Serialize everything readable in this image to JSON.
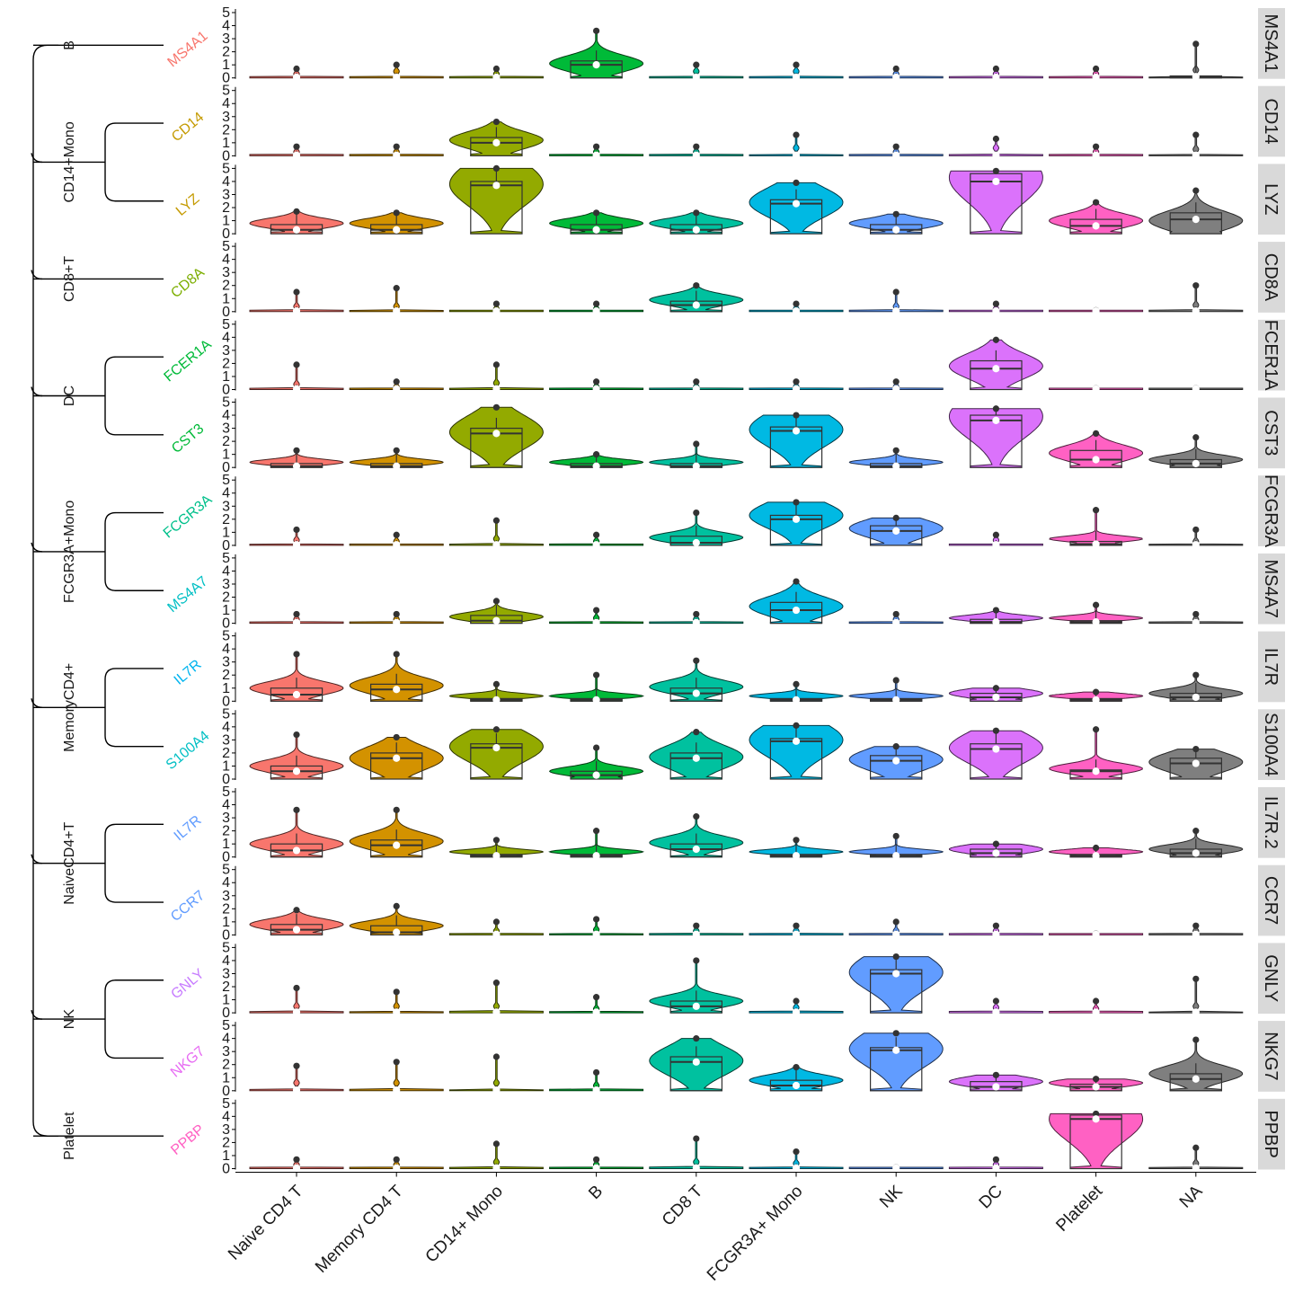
{
  "chart_data": {
    "type": "stacked-violin",
    "ytick_labels": [
      "0",
      "1",
      "2",
      "3",
      "4",
      "5"
    ],
    "ylim": [
      0,
      5
    ],
    "categories": [
      "Naive CD4 T",
      "Memory CD4 T",
      "CD14+ Mono",
      "B",
      "CD8 T",
      "FCGR3A+ Mono",
      "NK",
      "DC",
      "Platelet",
      "NA"
    ],
    "category_colors": [
      "#F8766D",
      "#D39200",
      "#93AA00",
      "#00BA38",
      "#00C19F",
      "#00B9E3",
      "#619CFF",
      "#DB72FB",
      "#FF61C3",
      "#7F7F7F"
    ],
    "genes": [
      {
        "name": "MS4A1",
        "label_color": "#F8766D",
        "medians": [
          0.05,
          0.05,
          0.05,
          1.0,
          0.05,
          0.05,
          0.05,
          0.05,
          0.05,
          0.1
        ],
        "q3": [
          0.05,
          0.05,
          0.05,
          1.3,
          0.05,
          0.05,
          0.05,
          0.05,
          0.05,
          0.15
        ],
        "peaks": [
          0.3,
          0.5,
          0.3,
          1.1,
          0.5,
          0.5,
          0.3,
          0.3,
          0.3,
          0.6
        ],
        "max": [
          0.7,
          1.0,
          0.7,
          3.6,
          1.0,
          1.0,
          0.7,
          0.7,
          0.7,
          2.6
        ]
      },
      {
        "name": "CD14",
        "label_color": "#C49A00",
        "medians": [
          0.05,
          0.05,
          1.0,
          0.05,
          0.05,
          0.05,
          0.05,
          0.05,
          0.05,
          0.05
        ],
        "q3": [
          0.05,
          0.05,
          1.4,
          0.05,
          0.05,
          0.05,
          0.05,
          0.05,
          0.05,
          0.05
        ],
        "peaks": [
          0.3,
          0.3,
          1.2,
          0.3,
          0.3,
          0.6,
          0.3,
          0.6,
          0.3,
          0.5
        ],
        "max": [
          0.7,
          0.7,
          2.6,
          0.7,
          0.7,
          1.6,
          0.7,
          1.3,
          0.7,
          1.6
        ]
      },
      {
        "name": "LYZ",
        "label_color": "#C49A00",
        "medians": [
          0.3,
          0.3,
          3.7,
          0.3,
          0.3,
          2.3,
          0.3,
          4.0,
          0.6,
          1.1
        ],
        "q3": [
          0.7,
          0.7,
          4.0,
          0.7,
          0.7,
          2.6,
          0.7,
          4.6,
          1.1,
          1.6
        ],
        "peaks": [
          0.8,
          0.8,
          3.8,
          0.8,
          0.8,
          2.4,
          0.8,
          4.3,
          1.0,
          1.0
        ],
        "max": [
          1.7,
          1.6,
          5.0,
          1.6,
          1.6,
          3.9,
          1.5,
          4.8,
          2.4,
          3.3
        ]
      },
      {
        "name": "CD8A",
        "label_color": "#7CAE00",
        "medians": [
          0.05,
          0.05,
          0.05,
          0.05,
          0.5,
          0.05,
          0.05,
          0.05,
          0.05,
          0.05
        ],
        "q3": [
          0.05,
          0.05,
          0.05,
          0.05,
          0.8,
          0.05,
          0.05,
          0.05,
          0.05,
          0.05
        ],
        "peaks": [
          0.4,
          0.4,
          0.2,
          0.2,
          0.9,
          0.2,
          0.4,
          0.2,
          0.1,
          0.5
        ],
        "max": [
          1.5,
          1.8,
          0.6,
          0.6,
          2.0,
          0.6,
          1.5,
          0.6,
          0.1,
          2.0
        ]
      },
      {
        "name": "FCER1A",
        "label_color": "#00BA38",
        "medians": [
          0.05,
          0.05,
          0.05,
          0.05,
          0.05,
          0.05,
          0.05,
          1.6,
          0.05,
          0.05
        ],
        "q3": [
          0.05,
          0.05,
          0.05,
          0.05,
          0.05,
          0.05,
          0.05,
          2.2,
          0.05,
          0.05
        ],
        "peaks": [
          0.4,
          0.2,
          0.5,
          0.2,
          0.2,
          0.2,
          0.2,
          1.8,
          0.1,
          0.1
        ],
        "max": [
          1.9,
          0.6,
          1.9,
          0.6,
          0.6,
          0.6,
          0.6,
          3.8,
          0.1,
          0.1
        ]
      },
      {
        "name": "CST3",
        "label_color": "#00BA38",
        "medians": [
          0.1,
          0.1,
          2.6,
          0.1,
          0.1,
          2.8,
          0.1,
          3.6,
          0.6,
          0.3
        ],
        "q3": [
          0.3,
          0.3,
          3.0,
          0.3,
          0.3,
          3.1,
          0.3,
          4.0,
          1.3,
          0.6
        ],
        "peaks": [
          0.4,
          0.4,
          2.7,
          0.4,
          0.4,
          2.9,
          0.4,
          3.9,
          1.1,
          0.6
        ],
        "max": [
          1.3,
          1.3,
          4.6,
          1.0,
          1.8,
          4.0,
          1.3,
          4.5,
          2.6,
          2.3
        ]
      },
      {
        "name": "FCGR3A",
        "label_color": "#00C08B",
        "medians": [
          0.05,
          0.05,
          0.05,
          0.05,
          0.2,
          2.0,
          1.1,
          0.05,
          0.1,
          0.05
        ],
        "q3": [
          0.05,
          0.05,
          0.05,
          0.05,
          0.7,
          2.3,
          1.5,
          0.05,
          0.3,
          0.05
        ],
        "peaks": [
          0.4,
          0.3,
          0.5,
          0.3,
          0.6,
          2.3,
          1.3,
          0.4,
          0.5,
          0.3
        ],
        "max": [
          1.2,
          0.8,
          1.9,
          0.8,
          2.5,
          3.3,
          2.1,
          0.8,
          2.7,
          1.2
        ]
      },
      {
        "name": "MS4A7",
        "label_color": "#00BFC4",
        "medians": [
          0.05,
          0.05,
          0.2,
          0.05,
          0.05,
          1.0,
          0.05,
          0.1,
          0.1,
          0.05
        ],
        "q3": [
          0.05,
          0.05,
          0.6,
          0.05,
          0.05,
          1.6,
          0.05,
          0.3,
          0.2,
          0.05
        ],
        "peaks": [
          0.3,
          0.3,
          0.5,
          0.4,
          0.3,
          1.3,
          0.3,
          0.4,
          0.4,
          0.3
        ],
        "max": [
          0.7,
          0.7,
          1.7,
          1.0,
          0.7,
          3.2,
          0.7,
          1.0,
          1.4,
          0.7
        ]
      },
      {
        "name": "IL7R",
        "label_color": "#00B4EF",
        "medians": [
          0.5,
          0.9,
          0.1,
          0.1,
          0.6,
          0.1,
          0.1,
          0.3,
          0.1,
          0.3
        ],
        "q3": [
          1.0,
          1.3,
          0.2,
          0.2,
          1.0,
          0.2,
          0.2,
          0.6,
          0.2,
          0.6
        ],
        "peaks": [
          1.0,
          1.2,
          0.4,
          0.4,
          1.1,
          0.4,
          0.4,
          0.6,
          0.4,
          0.6
        ],
        "max": [
          3.6,
          3.6,
          1.3,
          2.0,
          3.1,
          1.3,
          1.6,
          1.0,
          0.7,
          2.0
        ]
      },
      {
        "name": "S100A4",
        "label_color": "#00BFC4",
        "medians": [
          0.6,
          1.6,
          2.4,
          0.3,
          1.6,
          2.9,
          1.4,
          2.3,
          0.6,
          1.2
        ],
        "q3": [
          1.0,
          2.0,
          2.7,
          0.6,
          2.0,
          3.1,
          1.8,
          2.7,
          0.7,
          1.6
        ],
        "peaks": [
          1.0,
          1.6,
          2.5,
          0.6,
          1.7,
          3.0,
          1.5,
          2.4,
          0.8,
          1.3
        ],
        "max": [
          3.4,
          3.2,
          3.8,
          2.4,
          3.6,
          4.1,
          2.5,
          3.7,
          3.8,
          2.3
        ]
      },
      {
        "name": "IL7R.2",
        "label_color": "#619CFF",
        "medians": [
          0.5,
          0.9,
          0.1,
          0.1,
          0.6,
          0.1,
          0.1,
          0.3,
          0.1,
          0.3
        ],
        "q3": [
          1.0,
          1.3,
          0.2,
          0.2,
          1.0,
          0.2,
          0.2,
          0.6,
          0.2,
          0.6
        ],
        "peaks": [
          1.0,
          1.2,
          0.4,
          0.4,
          1.1,
          0.4,
          0.4,
          0.6,
          0.4,
          0.6
        ],
        "max": [
          3.6,
          3.6,
          1.3,
          2.0,
          3.1,
          1.3,
          1.6,
          1.0,
          0.7,
          2.0
        ]
      },
      {
        "name": "CCR7",
        "label_color": "#619CFF",
        "medians": [
          0.4,
          0.2,
          0.05,
          0.05,
          0.05,
          0.05,
          0.05,
          0.05,
          0.05,
          0.05
        ],
        "q3": [
          0.8,
          0.7,
          0.05,
          0.05,
          0.05,
          0.05,
          0.05,
          0.05,
          0.05,
          0.05
        ],
        "peaks": [
          0.8,
          0.7,
          0.3,
          0.4,
          0.3,
          0.3,
          0.3,
          0.3,
          0.1,
          0.3
        ],
        "max": [
          1.9,
          2.2,
          1.0,
          1.2,
          0.7,
          0.7,
          1.0,
          0.7,
          0.1,
          0.7
        ]
      },
      {
        "name": "GNLY",
        "label_color": "#C77CFF",
        "medians": [
          0.05,
          0.05,
          0.05,
          0.05,
          0.5,
          0.05,
          3.0,
          0.05,
          0.05,
          0.05
        ],
        "q3": [
          0.05,
          0.05,
          0.05,
          0.05,
          0.9,
          0.05,
          3.3,
          0.05,
          0.05,
          0.05
        ],
        "peaks": [
          0.5,
          0.5,
          0.5,
          0.3,
          0.9,
          0.4,
          3.1,
          0.4,
          0.3,
          0.5
        ],
        "max": [
          1.9,
          1.6,
          2.3,
          1.2,
          4.0,
          0.9,
          4.3,
          0.9,
          0.9,
          2.6
        ]
      },
      {
        "name": "NKG7",
        "label_color": "#E76BF3",
        "medians": [
          0.05,
          0.05,
          0.05,
          0.05,
          2.2,
          0.4,
          3.1,
          0.3,
          0.3,
          0.9
        ],
        "q3": [
          0.05,
          0.05,
          0.05,
          0.05,
          2.6,
          0.8,
          3.3,
          0.7,
          0.5,
          1.3
        ],
        "peaks": [
          0.6,
          0.6,
          0.6,
          0.4,
          2.3,
          0.8,
          3.2,
          0.7,
          0.6,
          1.3
        ],
        "max": [
          1.9,
          2.2,
          2.6,
          1.4,
          4.0,
          1.8,
          4.4,
          1.2,
          0.9,
          3.9
        ]
      },
      {
        "name": "PPBP",
        "label_color": "#FF61C3",
        "medians": [
          0.05,
          0.05,
          0.05,
          0.05,
          0.05,
          0.05,
          0.05,
          0.05,
          3.8,
          0.05
        ],
        "q3": [
          0.05,
          0.05,
          0.05,
          0.05,
          0.05,
          0.05,
          0.05,
          0.05,
          4.1,
          0.05
        ],
        "peaks": [
          0.3,
          0.3,
          0.5,
          0.3,
          0.5,
          0.4,
          0.1,
          0.3,
          3.8,
          0.4
        ],
        "max": [
          0.7,
          0.7,
          1.9,
          0.7,
          2.3,
          1.3,
          0.1,
          0.7,
          4.2,
          1.6
        ]
      }
    ],
    "dendrogram_groups": [
      {
        "label": "B",
        "gene_index": [
          0
        ]
      },
      {
        "label": "CD14+Mono",
        "gene_index": [
          1,
          2
        ]
      },
      {
        "label": "CD8+T",
        "gene_index": [
          3
        ]
      },
      {
        "label": "DC",
        "gene_index": [
          4,
          5
        ]
      },
      {
        "label": "FCGR3A+Mono",
        "gene_index": [
          6,
          7
        ]
      },
      {
        "label": "MemoryCD4+",
        "gene_index": [
          8,
          9
        ]
      },
      {
        "label": "NaiveCD4+T",
        "gene_index": [
          10,
          11
        ]
      },
      {
        "label": "NK",
        "gene_index": [
          12,
          13
        ]
      },
      {
        "label": "Platelet",
        "gene_index": [
          14
        ]
      }
    ],
    "grid": false,
    "legend": "none"
  }
}
